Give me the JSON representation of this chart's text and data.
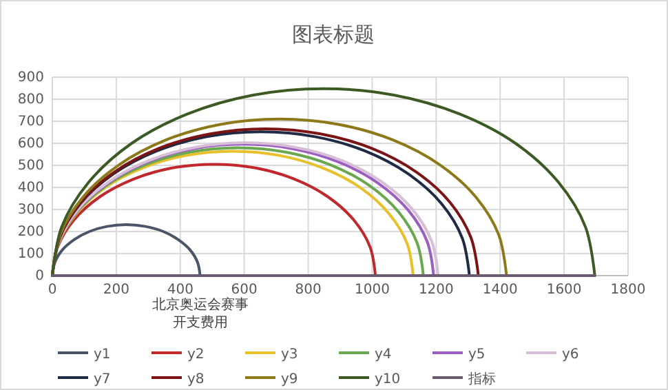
{
  "chart_data": {
    "type": "line",
    "title": "图表标题",
    "xlim": [
      0,
      1800
    ],
    "xticks": [
      0,
      200,
      400,
      600,
      800,
      1000,
      1200,
      1400,
      1600,
      1800
    ],
    "ylim": [
      0,
      900
    ],
    "yticks": [
      0,
      100,
      200,
      300,
      400,
      500,
      600,
      700,
      800,
      900
    ],
    "grid": true,
    "legend": "bottom",
    "marker": "none",
    "line_style": "solid",
    "annotations": [
      {
        "text": "北京奥运会赛事开支费用",
        "x": 462,
        "y": 0
      }
    ],
    "series": [
      {
        "name": "y1",
        "color": "#4a5568",
        "x": [
          0,
          8,
          31,
          68,
          116,
          171,
          231,
          291,
          347,
          394,
          431,
          454,
          462
        ],
        "values": [
          0,
          60,
          116,
          163,
          200,
          223,
          231,
          223,
          200,
          163,
          116,
          60,
          0
        ]
      },
      {
        "name": "y2",
        "color": "#c0282d",
        "x": [
          0,
          17,
          68,
          148,
          253,
          374,
          505,
          636,
          758,
          862,
          942,
          993,
          1010
        ],
        "values": [
          0,
          131,
          253,
          357,
          437,
          488,
          505,
          488,
          437,
          357,
          253,
          131,
          0
        ]
      },
      {
        "name": "y3",
        "color": "#e8c02a",
        "x": [
          0,
          19,
          76,
          165,
          282,
          418,
          564,
          710,
          846,
          963,
          1052,
          1109,
          1128
        ],
        "values": [
          0,
          146,
          282,
          399,
          488,
          545,
          564,
          545,
          488,
          399,
          282,
          146,
          0
        ]
      },
      {
        "name": "y4",
        "color": "#6aa84f",
        "x": [
          0,
          20,
          78,
          170,
          290,
          430,
          580,
          730,
          870,
          990,
          1082,
          1140,
          1160
        ],
        "values": [
          0,
          150,
          290,
          410,
          502,
          560,
          580,
          560,
          502,
          410,
          290,
          150,
          0
        ]
      },
      {
        "name": "y5",
        "color": "#9b5fc0",
        "x": [
          0,
          20,
          80,
          175,
          298,
          442,
          596,
          750,
          894,
          1017,
          1112,
          1172,
          1192
        ],
        "values": [
          0,
          154,
          298,
          421,
          516,
          576,
          596,
          576,
          516,
          421,
          298,
          154,
          0
        ]
      },
      {
        "name": "y6",
        "color": "#d8bfd8",
        "x": [
          0,
          21,
          81,
          177,
          302,
          447,
          603,
          759,
          905,
          1029,
          1125,
          1186,
          1206
        ],
        "values": [
          0,
          156,
          302,
          426,
          522,
          582,
          603,
          582,
          522,
          426,
          302,
          156,
          0
        ]
      },
      {
        "name": "y7",
        "color": "#1f2a44",
        "x": [
          0,
          22,
          87,
          191,
          326,
          483,
          652,
          821,
          978,
          1113,
          1217,
          1282,
          1304
        ],
        "values": [
          0,
          169,
          326,
          461,
          565,
          630,
          652,
          630,
          565,
          461,
          326,
          169,
          0
        ]
      },
      {
        "name": "y8",
        "color": "#7b1414",
        "x": [
          0,
          23,
          89,
          195,
          333,
          494,
          666,
          838,
          999,
          1137,
          1243,
          1309,
          1332
        ],
        "values": [
          0,
          172,
          333,
          471,
          577,
          643,
          666,
          643,
          577,
          471,
          333,
          172,
          0
        ]
      },
      {
        "name": "y9",
        "color": "#8c7a1a",
        "x": [
          0,
          24,
          95,
          208,
          355,
          526,
          710,
          894,
          1065,
          1212,
          1325,
          1396,
          1420
        ],
        "values": [
          0,
          184,
          355,
          502,
          615,
          686,
          710,
          686,
          615,
          502,
          355,
          184,
          0
        ]
      },
      {
        "name": "y10",
        "color": "#3d5a24",
        "x": [
          0,
          29,
          114,
          248,
          424,
          628,
          848,
          1068,
          1272,
          1448,
          1582,
          1667,
          1696
        ],
        "values": [
          0,
          220,
          424,
          600,
          734,
          819,
          848,
          819,
          734,
          600,
          424,
          220,
          0
        ]
      },
      {
        "name": "指标",
        "color": "#6b5a6e",
        "x": [
          0,
          462,
          1010,
          1128,
          1160,
          1192,
          1206,
          1304,
          1332,
          1420,
          1696
        ],
        "values": [
          0,
          0,
          0,
          0,
          0,
          0,
          0,
          0,
          0,
          0,
          0
        ]
      }
    ]
  }
}
